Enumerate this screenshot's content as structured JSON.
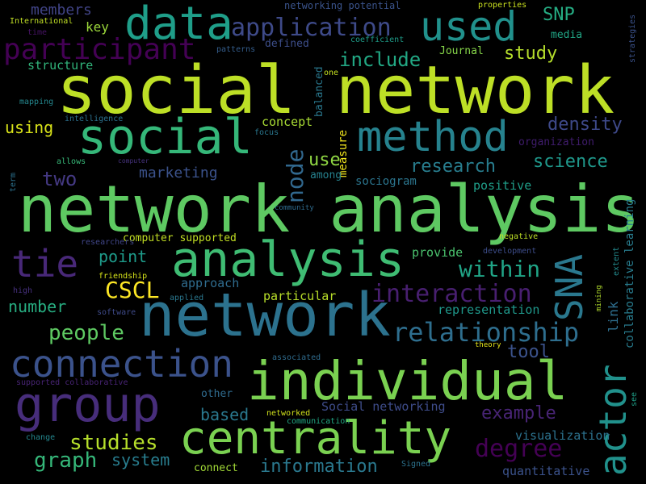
{
  "words": [
    {
      "text": "social network",
      "color": "#bddf26"
    },
    {
      "text": "network analysis",
      "color": "#5ec962"
    },
    {
      "text": "network",
      "color": "#2c728e"
    },
    {
      "text": "individual",
      "color": "#7ad151"
    },
    {
      "text": "social",
      "color": "#35b779"
    },
    {
      "text": "analysis",
      "color": "#3fbc73"
    },
    {
      "text": "centrality",
      "color": "#7ad151"
    },
    {
      "text": "group",
      "color": "#472d7b"
    },
    {
      "text": "data",
      "color": "#1f9e89"
    },
    {
      "text": "method",
      "color": "#26828e"
    },
    {
      "text": "used",
      "color": "#21918c"
    },
    {
      "text": "connection",
      "color": "#3b528b"
    },
    {
      "text": "participant",
      "color": "#440154"
    },
    {
      "text": "tie",
      "color": "#482878"
    },
    {
      "text": "actor",
      "color": "#21918c"
    },
    {
      "text": "SNA",
      "color": "#2a788e"
    },
    {
      "text": "relationship",
      "color": "#2e6e8e"
    },
    {
      "text": "application",
      "color": "#3e4a89"
    },
    {
      "text": "interaction",
      "color": "#481f70"
    },
    {
      "text": "CSCL",
      "color": "#fde725"
    },
    {
      "text": "degree",
      "color": "#440154"
    },
    {
      "text": "studies",
      "color": "#b5de2b"
    },
    {
      "text": "node",
      "color": "#31688e"
    },
    {
      "text": "include",
      "color": "#22a884"
    },
    {
      "text": "within",
      "color": "#20a486"
    },
    {
      "text": "people",
      "color": "#5ec962"
    },
    {
      "text": "graph",
      "color": "#35b779"
    },
    {
      "text": "research",
      "color": "#287d8e"
    },
    {
      "text": "density",
      "color": "#3e4989"
    },
    {
      "text": "science",
      "color": "#1f988b"
    },
    {
      "text": "information",
      "color": "#2a788e"
    },
    {
      "text": "two",
      "color": "#443983"
    },
    {
      "text": "study",
      "color": "#b5de2b"
    },
    {
      "text": "SNP",
      "color": "#25ab82"
    },
    {
      "text": "tool",
      "color": "#3b528b"
    },
    {
      "text": "example",
      "color": "#482475"
    },
    {
      "text": "point",
      "color": "#1e9b8a"
    },
    {
      "text": "number",
      "color": "#27ad81"
    },
    {
      "text": "marketing",
      "color": "#3b528b"
    },
    {
      "text": "use",
      "color": "#90d743"
    },
    {
      "text": "system",
      "color": "#287d8e"
    },
    {
      "text": "using",
      "color": "#d8e219"
    },
    {
      "text": "based",
      "color": "#2a788e"
    },
    {
      "text": "approach",
      "color": "#2f6c8e"
    },
    {
      "text": "representation",
      "color": "#1f988b"
    },
    {
      "text": "visualization",
      "color": "#2c728e"
    },
    {
      "text": "link",
      "color": "#2e6e8e"
    },
    {
      "text": "members",
      "color": "#414487"
    },
    {
      "text": "key",
      "color": "#9dd93b"
    },
    {
      "text": "structure",
      "color": "#31b57b"
    },
    {
      "text": "concept",
      "color": "#a8db34"
    },
    {
      "text": "provide",
      "color": "#4ac16d"
    },
    {
      "text": "sociogram",
      "color": "#2b758e"
    },
    {
      "text": "particular",
      "color": "#b8de29"
    },
    {
      "text": "positive",
      "color": "#1f9e89"
    },
    {
      "text": "quantitative",
      "color": "#3b528b"
    },
    {
      "text": "Social networking",
      "color": "#3e4c8a"
    },
    {
      "text": "computer supported",
      "color": "#c2df23"
    },
    {
      "text": "collaborative learning",
      "color": "#287c8e"
    },
    {
      "text": "measure",
      "color": "#f1e51d"
    },
    {
      "text": "balanced",
      "color": "#2a788e"
    },
    {
      "text": "organization",
      "color": "#3f1c6c"
    },
    {
      "text": "Journal",
      "color": "#86d549"
    },
    {
      "text": "defined",
      "color": "#3d4e8a"
    },
    {
      "text": "networking potential",
      "color": "#3a538b"
    },
    {
      "text": "media",
      "color": "#21a685"
    },
    {
      "text": "among",
      "color": "#26828e"
    },
    {
      "text": "connect",
      "color": "#a2da37"
    },
    {
      "text": "other",
      "color": "#2f6b8e"
    },
    {
      "text": "properties",
      "color": "#cae11f"
    },
    {
      "text": "International",
      "color": "#c0df25"
    },
    {
      "text": "coefficient",
      "color": "#1e9c89"
    },
    {
      "text": "patterns",
      "color": "#355e8d"
    },
    {
      "text": "one",
      "color": "#c5e021"
    },
    {
      "text": "time",
      "color": "#471365"
    },
    {
      "text": "mapping",
      "color": "#24878e"
    },
    {
      "text": "intelligence",
      "color": "#2c718e"
    },
    {
      "text": "focus",
      "color": "#2a778e"
    },
    {
      "text": "allows",
      "color": "#37b878"
    },
    {
      "text": "computer",
      "color": "#46337e"
    },
    {
      "text": "term",
      "color": "#2c718e"
    },
    {
      "text": "community",
      "color": "#2f6b8e"
    },
    {
      "text": "researchers",
      "color": "#404688"
    },
    {
      "text": "friendship",
      "color": "#d5e21a"
    },
    {
      "text": "high",
      "color": "#46307e"
    },
    {
      "text": "software",
      "color": "#3e4a89"
    },
    {
      "text": "applied",
      "color": "#2a778e"
    },
    {
      "text": "negative",
      "color": "#bddf26"
    },
    {
      "text": "development",
      "color": "#3d4d8a"
    },
    {
      "text": "associated",
      "color": "#2f6c8e"
    },
    {
      "text": "theory",
      "color": "#e5e419"
    },
    {
      "text": "supported collaborative",
      "color": "#482475"
    },
    {
      "text": "networked",
      "color": "#d0e11c"
    },
    {
      "text": "communication",
      "color": "#22a884"
    },
    {
      "text": "change",
      "color": "#24878e"
    },
    {
      "text": "Signed",
      "color": "#2c728e"
    },
    {
      "text": "see",
      "color": "#1f9f88"
    },
    {
      "text": "strategies",
      "color": "#3b528b"
    },
    {
      "text": "extent",
      "color": "#238a8d"
    },
    {
      "text": "mining",
      "color": "#b2dd2d"
    }
  ]
}
